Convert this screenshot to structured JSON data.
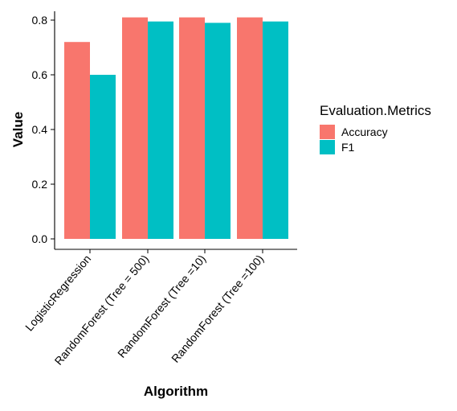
{
  "chart_data": {
    "type": "bar",
    "title": "",
    "xlabel": "Algorithm",
    "ylabel": "Value",
    "categories": [
      "LogisticRegression",
      "RandomForest (Tree = 500)",
      "RandomForest (Tree =10)",
      "RandomForest (Tree =100)"
    ],
    "series": [
      {
        "name": "Accuracy",
        "values": [
          0.72,
          0.81,
          0.81,
          0.81
        ],
        "color": "#F8766D"
      },
      {
        "name": "F1",
        "values": [
          0.6,
          0.795,
          0.79,
          0.795
        ],
        "color": "#00BFC4"
      }
    ],
    "ylim": [
      0,
      0.85
    ],
    "yticks": [
      "0.0",
      "0.2",
      "0.4",
      "0.6",
      "0.8"
    ],
    "grid": false,
    "legend": {
      "title": "Evaluation.Metrics",
      "position": "right"
    }
  }
}
